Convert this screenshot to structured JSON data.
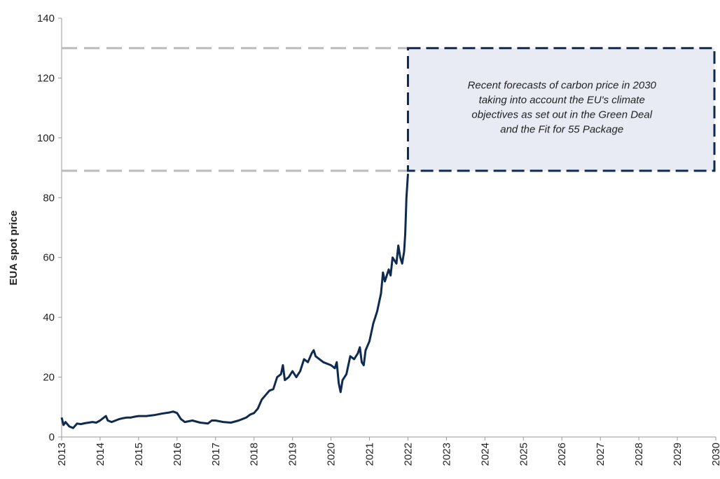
{
  "chart_data": {
    "type": "line",
    "y_label": "EUA spot price",
    "xlim": [
      2013,
      2030
    ],
    "xticks": [
      2013,
      2014,
      2015,
      2016,
      2017,
      2018,
      2019,
      2020,
      2021,
      2022,
      2023,
      2024,
      2025,
      2026,
      2027,
      2028,
      2029,
      2030
    ],
    "ylim": [
      0,
      140
    ],
    "yticks": [
      0,
      20,
      40,
      60,
      80,
      100,
      120,
      140
    ],
    "series": [
      {
        "name": "EUA spot price",
        "color": "#0e2a4f",
        "x": [
          2013.0,
          2013.05,
          2013.1,
          2013.2,
          2013.3,
          2013.4,
          2013.5,
          2013.6,
          2013.7,
          2013.8,
          2013.9,
          2014.0,
          2014.1,
          2014.15,
          2014.2,
          2014.3,
          2014.4,
          2014.5,
          2014.6,
          2014.7,
          2014.8,
          2014.9,
          2015.0,
          2015.2,
          2015.4,
          2015.6,
          2015.8,
          2015.9,
          2016.0,
          2016.1,
          2016.2,
          2016.4,
          2016.6,
          2016.8,
          2016.9,
          2017.0,
          2017.2,
          2017.4,
          2017.6,
          2017.8,
          2017.9,
          2018.0,
          2018.1,
          2018.2,
          2018.3,
          2018.4,
          2018.5,
          2018.6,
          2018.7,
          2018.75,
          2018.8,
          2018.9,
          2019.0,
          2019.1,
          2019.2,
          2019.3,
          2019.4,
          2019.5,
          2019.55,
          2019.6,
          2019.7,
          2019.8,
          2019.9,
          2020.0,
          2020.1,
          2020.15,
          2020.2,
          2020.25,
          2020.3,
          2020.4,
          2020.5,
          2020.6,
          2020.7,
          2020.75,
          2020.8,
          2020.85,
          2020.9,
          2021.0,
          2021.1,
          2021.15,
          2021.2,
          2021.3,
          2021.35,
          2021.4,
          2021.5,
          2021.55,
          2021.6,
          2021.7,
          2021.75,
          2021.8,
          2021.85,
          2021.9,
          2021.93,
          2021.96,
          2022.0
        ],
        "values": [
          6.5,
          4,
          5,
          3.5,
          3.0,
          4.5,
          4.3,
          4.6,
          4.8,
          5,
          4.8,
          5.5,
          6.5,
          7,
          5.5,
          5,
          5.5,
          6,
          6.3,
          6.5,
          6.5,
          6.8,
          7,
          7,
          7.3,
          7.8,
          8.2,
          8.5,
          8,
          6,
          5,
          5.5,
          4.8,
          4.5,
          5.5,
          5.5,
          5,
          4.8,
          5.5,
          6.5,
          7.5,
          8,
          9.5,
          12.5,
          14,
          15.5,
          16,
          20,
          21,
          24,
          19,
          20,
          22,
          20,
          22,
          26,
          25,
          28,
          29,
          27,
          26,
          25,
          24.5,
          24,
          23,
          25,
          18,
          15,
          19,
          21,
          27,
          26,
          28,
          30,
          25,
          24,
          29,
          32,
          38,
          40,
          42,
          48,
          55,
          52,
          56,
          54,
          60,
          58,
          64,
          60,
          58,
          62,
          68,
          80,
          88
        ]
      }
    ],
    "forecast_range": {
      "xlim": [
        2022,
        2030
      ],
      "ylim": [
        89,
        130
      ]
    },
    "annotation_lines": [
      "Recent forecasts of carbon price in 2030",
      "taking into account the EU's climate",
      "objectives as set out in the Green Deal",
      "and the Fit for 55 Package"
    ]
  }
}
